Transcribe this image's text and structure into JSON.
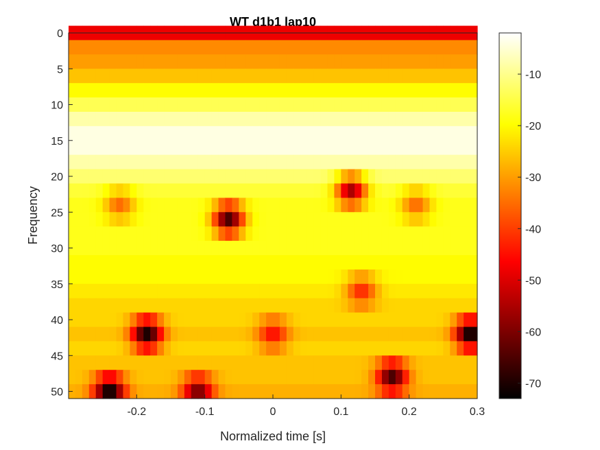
{
  "chart_data": {
    "type": "heatmap",
    "title": "WT d1b1 lap10",
    "xlabel": "Normalized time [s]",
    "ylabel": "Frequency",
    "xlim": [
      -0.3,
      0.3
    ],
    "ylim": [
      0,
      51
    ],
    "y_reversed": true,
    "x_ticks": [
      -0.2,
      -0.1,
      0,
      0.1,
      0.2,
      0.3
    ],
    "x_tick_labels": [
      "-0.2",
      "-0.1",
      "0",
      "0.1",
      "0.2",
      "0.3"
    ],
    "y_ticks": [
      0,
      5,
      10,
      15,
      20,
      25,
      30,
      35,
      40,
      45,
      50
    ],
    "y_tick_labels": [
      "0",
      "5",
      "10",
      "15",
      "20",
      "25",
      "30",
      "35",
      "40",
      "45",
      "50"
    ],
    "colormap": "hot",
    "colorbar": {
      "clim": [
        -73,
        -2
      ],
      "ticks": [
        -10,
        -20,
        -30,
        -40,
        -50,
        -60,
        -70
      ],
      "tick_labels": [
        "-10",
        "-20",
        "-30",
        "-40",
        "-50",
        "-60",
        "-70"
      ]
    },
    "frequency_bins": [
      1,
      3,
      5,
      7,
      9,
      11,
      13,
      15,
      17,
      19,
      21,
      23,
      25,
      27,
      29,
      31,
      33,
      35,
      37,
      39,
      41,
      43,
      45,
      47,
      49,
      51
    ],
    "row_base_power": [
      -48,
      -32,
      -30,
      -26,
      -20,
      -14,
      -8,
      -4,
      -4,
      -8,
      -12,
      -16,
      -18,
      -18,
      -18,
      -18,
      -20,
      -20,
      -22,
      -24,
      -24,
      -26,
      -24,
      -26,
      -26,
      -28
    ],
    "minima": [
      {
        "x": -0.24,
        "freq": 51,
        "power": -72
      },
      {
        "x": -0.11,
        "freq": 51,
        "power": -60
      },
      {
        "x": -0.185,
        "freq": 43,
        "power": -70
      },
      {
        "x": 0.0,
        "freq": 43,
        "power": -45
      },
      {
        "x": 0.29,
        "freq": 43,
        "power": -72
      },
      {
        "x": -0.065,
        "freq": 27,
        "power": -65
      },
      {
        "x": 0.115,
        "freq": 23,
        "power": -55
      },
      {
        "x": -0.225,
        "freq": 25,
        "power": -35
      },
      {
        "x": 0.21,
        "freq": 25,
        "power": -35
      },
      {
        "x": 0.13,
        "freq": 37,
        "power": -42
      },
      {
        "x": 0.175,
        "freq": 49,
        "power": -65
      }
    ]
  }
}
